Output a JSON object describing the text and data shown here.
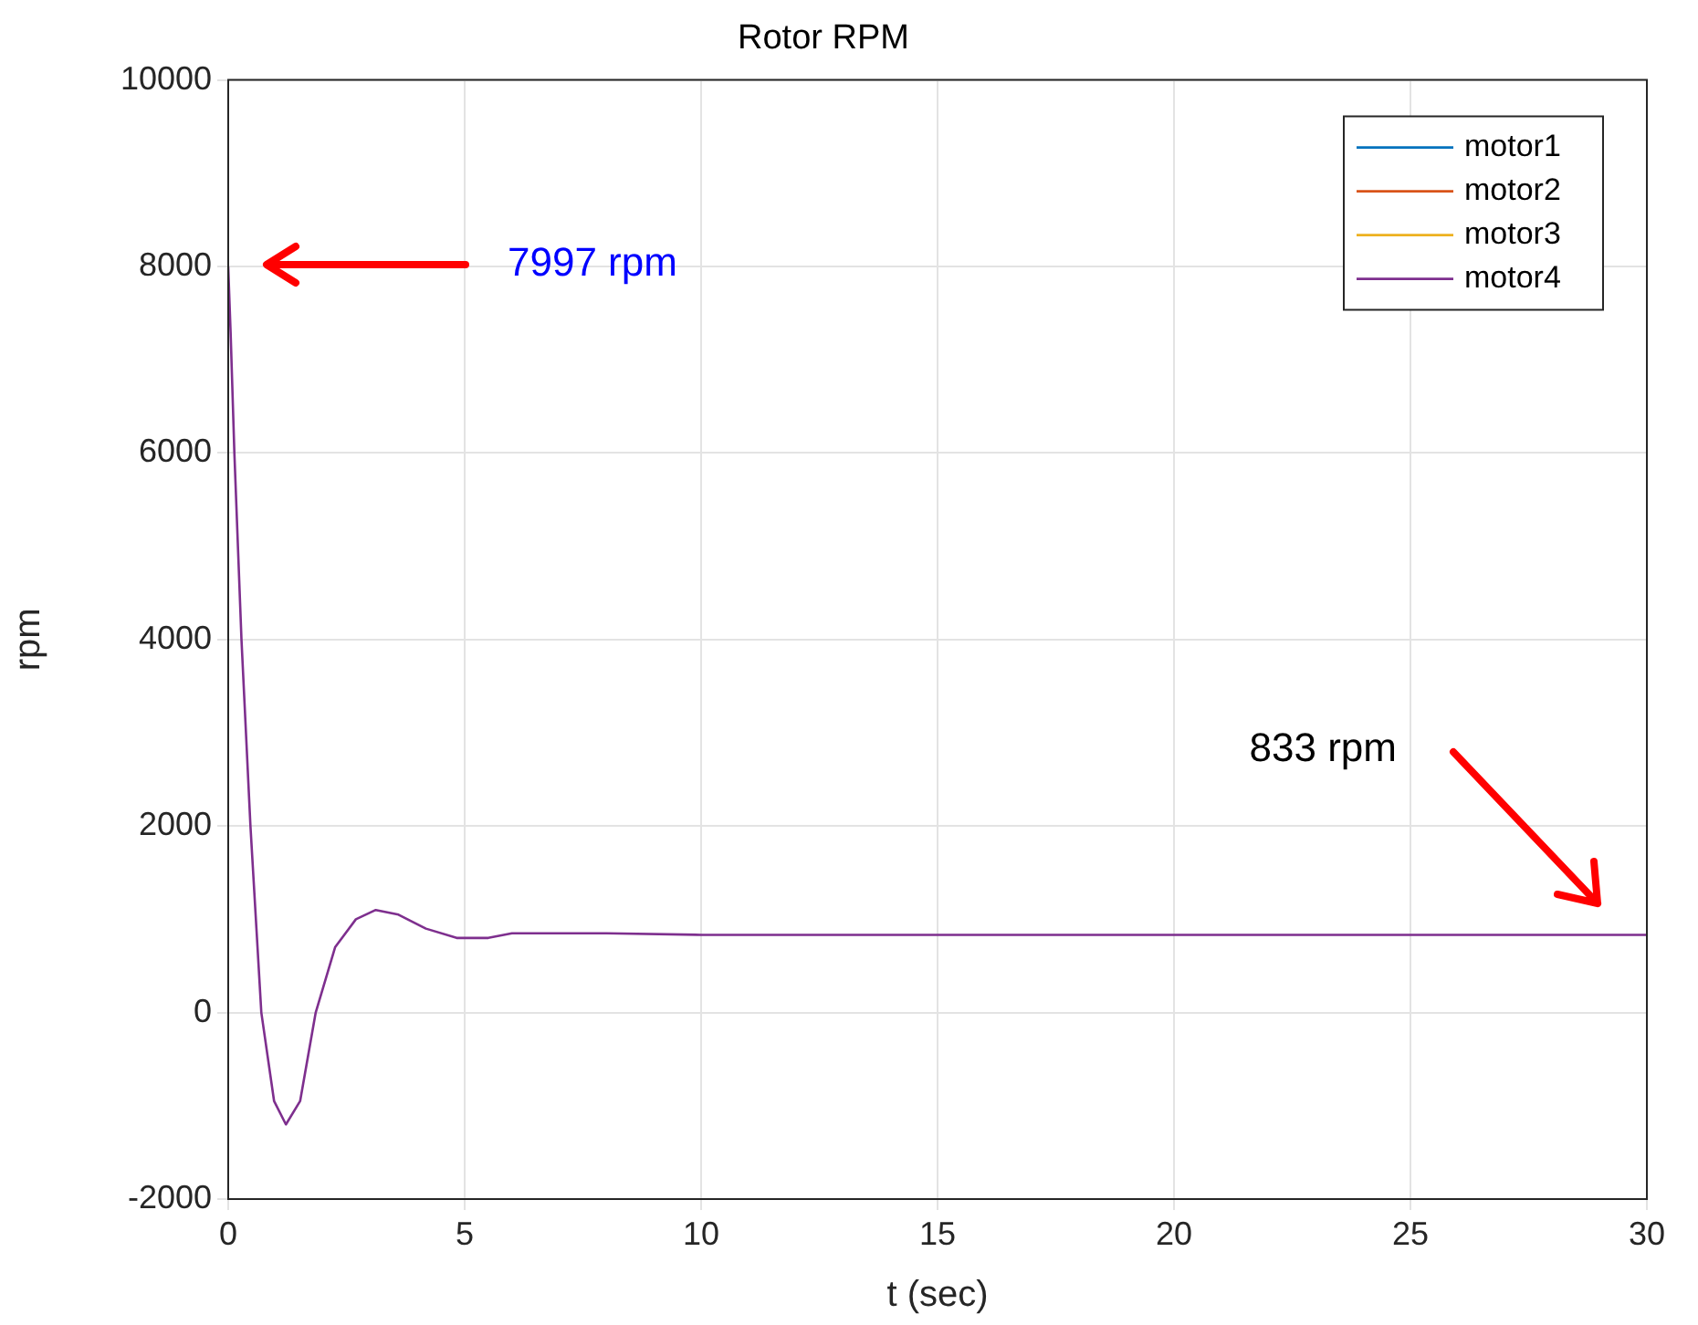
{
  "chart_data": {
    "type": "line",
    "title": "Rotor RPM",
    "xlabel": "t (sec)",
    "ylabel": "rpm",
    "x": [
      0,
      0.05,
      0.13,
      0.28,
      0.47,
      0.7,
      0.97,
      1.22,
      1.52,
      1.85,
      2.26,
      2.7,
      3.12,
      3.6,
      4.18,
      4.83,
      5.5,
      6,
      7,
      8,
      10,
      15,
      20,
      25,
      30
    ],
    "series": [
      {
        "name": "motor1",
        "color": "#0072bd",
        "values": [
          null,
          null,
          null,
          null,
          null,
          null,
          null,
          null,
          null,
          null,
          null,
          null,
          null,
          null,
          null,
          null,
          null,
          null,
          null,
          null,
          null,
          null,
          null,
          null,
          null
        ]
      },
      {
        "name": "motor2",
        "color": "#d95319",
        "values": [
          null,
          null,
          null,
          null,
          null,
          null,
          null,
          null,
          null,
          null,
          null,
          null,
          null,
          null,
          null,
          null,
          null,
          null,
          null,
          null,
          null,
          null,
          null,
          null,
          null
        ]
      },
      {
        "name": "motor3",
        "color": "#edb120",
        "values": [
          null,
          null,
          null,
          null,
          null,
          null,
          null,
          null,
          null,
          null,
          null,
          null,
          null,
          null,
          null,
          null,
          null,
          null,
          null,
          null,
          null,
          null,
          null,
          null,
          null
        ]
      },
      {
        "name": "motor4",
        "color": "#7e2f8e",
        "values": [
          7997,
          7300,
          6000,
          4000,
          2000,
          0,
          -950,
          -1200,
          -950,
          0,
          700,
          1000,
          1100,
          1050,
          900,
          800,
          800,
          850,
          850,
          850,
          833,
          833,
          833,
          833,
          833
        ]
      }
    ],
    "xlim": [
      0,
      30
    ],
    "xticks": [
      0,
      5,
      10,
      15,
      20,
      25,
      30
    ],
    "ylim": [
      -2000,
      10000
    ],
    "yticks": [
      -2000,
      0,
      2000,
      4000,
      6000,
      8000,
      10000
    ],
    "grid": true,
    "legend": "top right",
    "annotations": [
      "7997 rpm",
      "833 rpm"
    ]
  }
}
